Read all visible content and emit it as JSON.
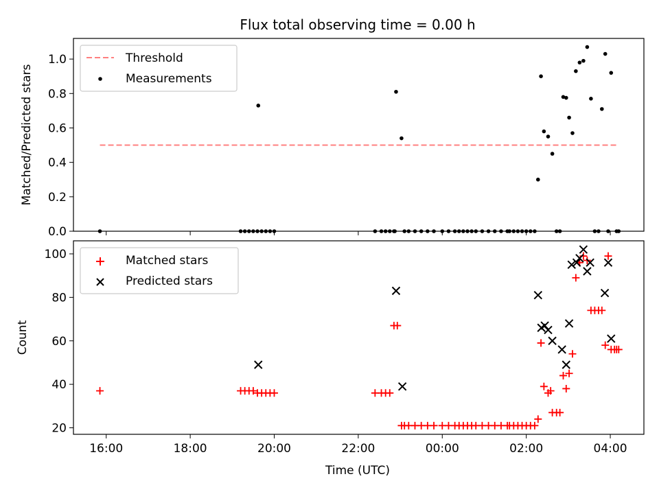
{
  "title": "Flux total observing time = 0.00 h",
  "xlabel": "Time (UTC)",
  "colors": {
    "threshold": "#ff7f7f",
    "measurement": "#000000",
    "matched": "#ff0000",
    "predicted": "#000000"
  },
  "x_ticks": [
    {
      "label": "16:00",
      "hour": 16
    },
    {
      "label": "18:00",
      "hour": 18
    },
    {
      "label": "20:00",
      "hour": 20
    },
    {
      "label": "22:00",
      "hour": 22
    },
    {
      "label": "00:00",
      "hour": 24
    },
    {
      "label": "02:00",
      "hour": 26
    },
    {
      "label": "04:00",
      "hour": 28
    }
  ],
  "chart_data": [
    {
      "type": "scatter",
      "ylabel": "Matched/Predicted stars",
      "xlim": [
        15.22,
        28.8
      ],
      "ylim": [
        0,
        1.12
      ],
      "y_ticks": [
        0.0,
        0.2,
        0.4,
        0.6,
        0.8,
        1.0
      ],
      "y_tick_labels": [
        "0.0",
        "0.2",
        "0.4",
        "0.6",
        "0.8",
        "1.0"
      ],
      "legend": {
        "position": "top-left",
        "entries": [
          "Threshold",
          "Measurements"
        ]
      },
      "threshold": {
        "name": "Threshold",
        "value": 0.5,
        "x_range": [
          15.85,
          28.2
        ]
      },
      "measurements": {
        "name": "Measurements",
        "x": [
          15.85,
          19.2,
          19.3,
          19.4,
          19.5,
          19.6,
          19.7,
          19.8,
          19.9,
          20.0,
          19.62,
          22.4,
          22.55,
          22.65,
          22.75,
          22.85,
          22.9,
          22.87,
          23.03,
          23.1,
          23.2,
          23.35,
          23.5,
          23.65,
          23.8,
          24.0,
          24.15,
          24.3,
          24.4,
          24.5,
          24.6,
          24.7,
          24.8,
          24.95,
          25.1,
          25.25,
          25.4,
          25.55,
          25.6,
          25.7,
          25.8,
          25.9,
          26.0,
          26.1,
          26.2,
          26.28,
          26.35,
          26.42,
          26.52,
          26.62,
          26.72,
          26.8,
          26.88,
          26.95,
          27.02,
          27.1,
          27.18,
          27.27,
          27.36,
          27.45,
          27.54,
          27.63,
          27.72,
          27.8,
          27.88,
          27.95,
          28.02,
          28.15,
          28.2
        ],
        "y": [
          0,
          0,
          0,
          0,
          0,
          0,
          0,
          0,
          0,
          0,
          0.73,
          0,
          0,
          0,
          0,
          0,
          0.81,
          0,
          0.54,
          0,
          0,
          0,
          0,
          0,
          0,
          0,
          0,
          0,
          0,
          0,
          0,
          0,
          0,
          0,
          0,
          0,
          0,
          0,
          0,
          0,
          0,
          0,
          0,
          0,
          0,
          0.3,
          0.9,
          0.58,
          0.55,
          0.45,
          0,
          0,
          0.78,
          0.775,
          0.66,
          0.57,
          0.93,
          0.98,
          0.99,
          1.07,
          0.77,
          0,
          0,
          0.71,
          1.03,
          0,
          0.92,
          0,
          0
        ]
      }
    },
    {
      "type": "scatter",
      "ylabel": "Count",
      "xlim": [
        15.22,
        28.8
      ],
      "ylim": [
        17,
        106
      ],
      "y_ticks": [
        20,
        40,
        60,
        80,
        100
      ],
      "y_tick_labels": [
        "20",
        "40",
        "60",
        "80",
        "100"
      ],
      "legend": {
        "position": "top-left",
        "entries": [
          "Matched stars",
          "Predicted stars"
        ]
      },
      "series": [
        {
          "name": "Matched stars",
          "marker": "plus",
          "x": [
            15.85,
            19.2,
            19.3,
            19.4,
            19.5,
            19.6,
            19.7,
            19.8,
            19.9,
            20.0,
            22.4,
            22.55,
            22.65,
            22.75,
            22.85,
            22.93,
            23.03,
            23.1,
            23.2,
            23.35,
            23.5,
            23.65,
            23.8,
            24.0,
            24.15,
            24.3,
            24.4,
            24.5,
            24.6,
            24.7,
            24.8,
            24.95,
            25.1,
            25.25,
            25.4,
            25.55,
            25.6,
            25.7,
            25.8,
            25.9,
            26.0,
            26.1,
            26.2,
            26.28,
            26.35,
            26.42,
            26.52,
            26.58,
            26.62,
            26.72,
            26.8,
            26.88,
            26.95,
            27.02,
            27.1,
            27.18,
            27.27,
            27.36,
            27.45,
            27.54,
            27.63,
            27.72,
            27.8,
            27.88,
            27.95,
            28.02,
            28.1,
            28.15,
            28.2
          ],
          "y": [
            37,
            37,
            37,
            37,
            37,
            36,
            36,
            36,
            36,
            36,
            36,
            36,
            36,
            36,
            67,
            67,
            21,
            21,
            21,
            21,
            21,
            21,
            21,
            21,
            21,
            21,
            21,
            21,
            21,
            21,
            21,
            21,
            21,
            21,
            21,
            21,
            21,
            21,
            21,
            21,
            21,
            21,
            21,
            24,
            59,
            39,
            36,
            37,
            27,
            27,
            27,
            44,
            38,
            45,
            54,
            89,
            96,
            99,
            97,
            74,
            74,
            74,
            74,
            58,
            99,
            56,
            56,
            56,
            56
          ]
        },
        {
          "name": "Predicted stars",
          "marker": "x",
          "x": [
            19.62,
            22.9,
            23.05,
            26.28,
            26.36,
            26.44,
            26.52,
            26.62,
            26.85,
            26.95,
            27.02,
            27.08,
            27.2,
            27.27,
            27.36,
            27.45,
            27.52,
            27.87,
            27.95,
            28.02
          ],
          "y": [
            49,
            83,
            39,
            81,
            66,
            67,
            65,
            60,
            56,
            49,
            68,
            95,
            96,
            98,
            102,
            92,
            96,
            82,
            96,
            61
          ]
        }
      ]
    }
  ]
}
